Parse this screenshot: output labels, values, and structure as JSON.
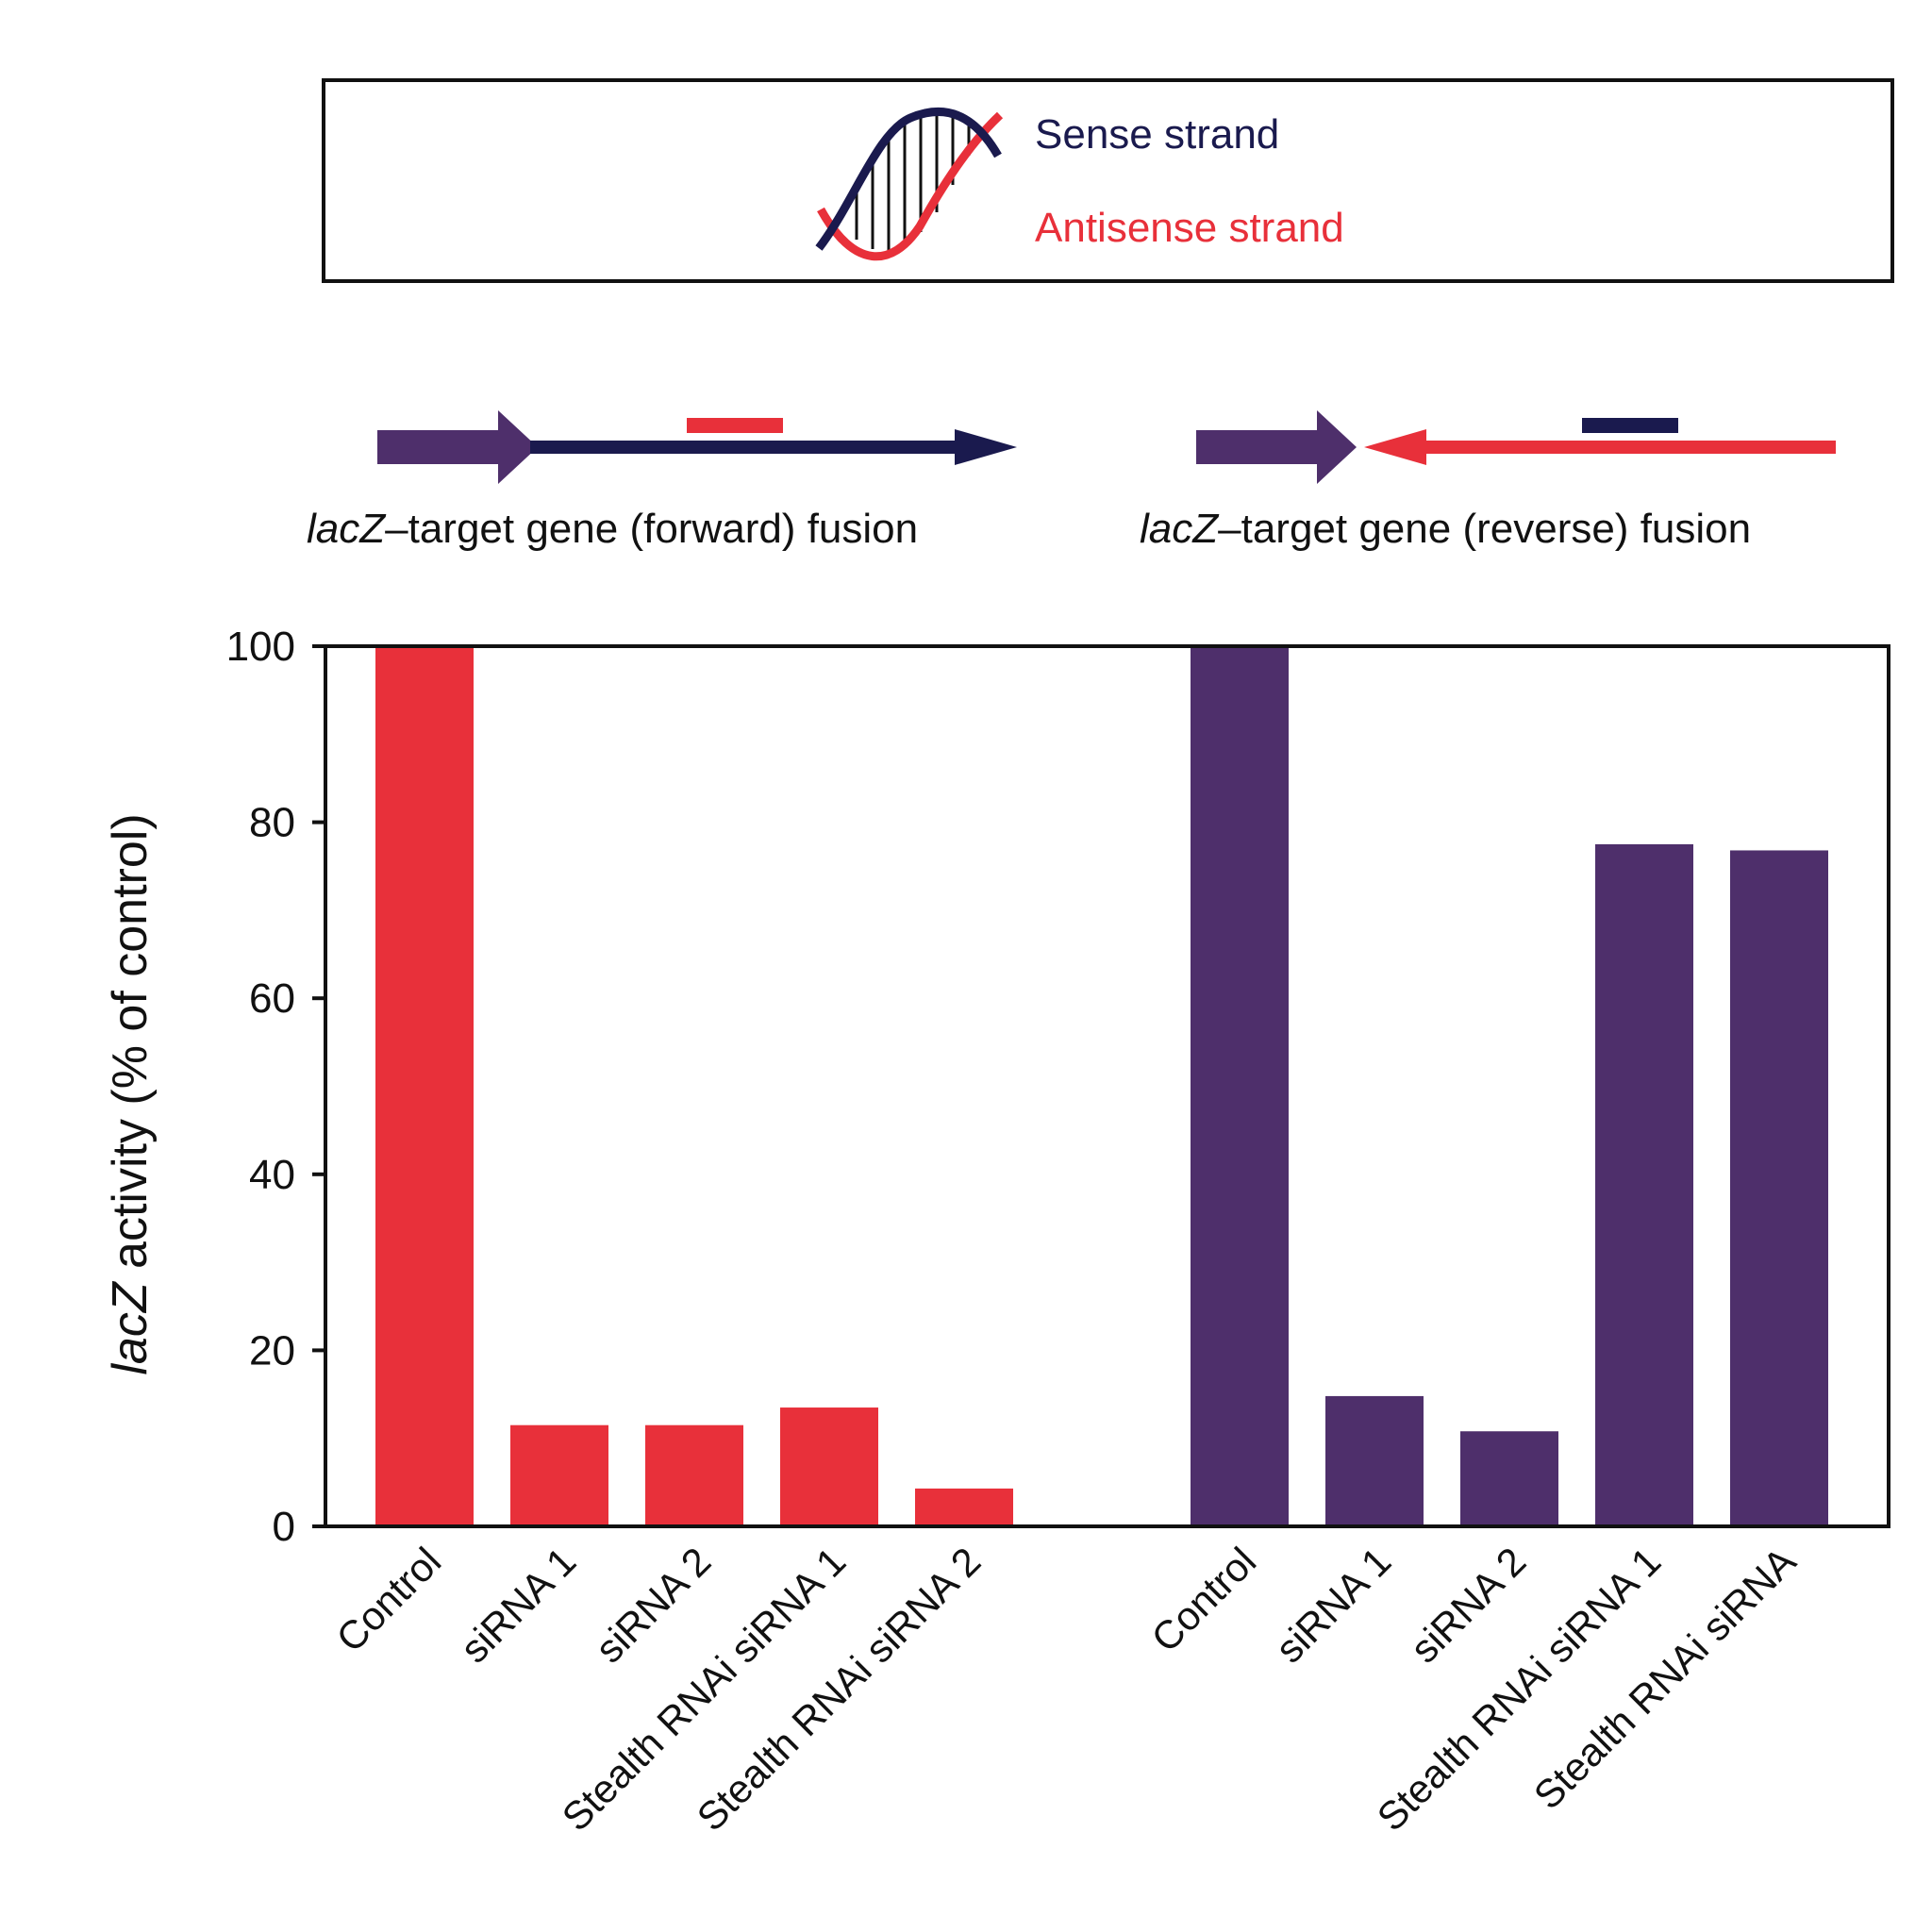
{
  "legend": {
    "sense_label": "Sense strand",
    "antisense_label": "Antisense strand",
    "sense_color": "#1a1a4e",
    "antisense_color": "#e8303a"
  },
  "constructs": {
    "forward": {
      "prefix": "lacZ",
      "suffix": "–target gene (forward) fusion"
    },
    "reverse": {
      "prefix": "lacZ",
      "suffix": "–target gene (reverse) fusion"
    },
    "lacz_color": "#4e2f6b"
  },
  "chart_data": {
    "type": "bar",
    "ylabel_prefix": "lacZ",
    "ylabel_suffix": " activity (% of control)",
    "xlabel": "",
    "ylim": [
      0,
      100
    ],
    "yticks": [
      0,
      20,
      40,
      60,
      80,
      100
    ],
    "groups": [
      {
        "name": "",
        "color": "#e8303a",
        "categories": [
          "Control",
          "siRNA 1",
          "siRNA 2",
          "Stealth RNAi siRNA 1",
          "Stealth RNAi siRNA 2"
        ],
        "values": [
          100,
          11.5,
          11.5,
          13.5,
          4.3
        ]
      },
      {
        "name": "",
        "color": "#4e2f6b",
        "categories": [
          "Control",
          "siRNA 1",
          "siRNA 2",
          "Stealth RNAi siRNA 1",
          "Stealth RNAi siRNA"
        ],
        "values": [
          100,
          14.8,
          10.8,
          77.5,
          76.8
        ]
      }
    ]
  }
}
